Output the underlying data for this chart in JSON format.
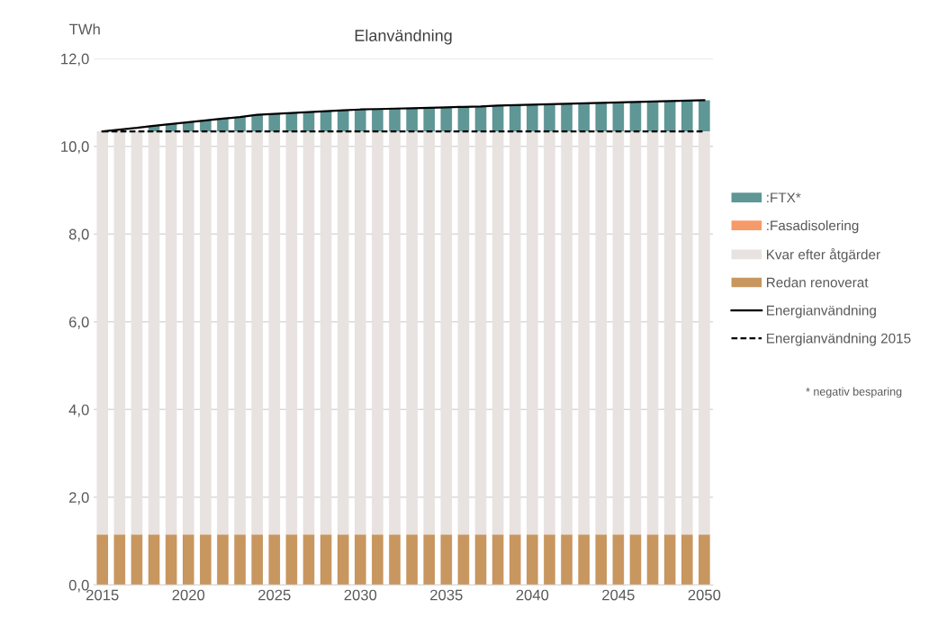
{
  "chart_data": {
    "type": "bar",
    "title": "Elanvändning",
    "ylabel": "TWh",
    "stacked": true,
    "categories": [
      "2015",
      null,
      null,
      null,
      null,
      "2020",
      null,
      null,
      null,
      null,
      "2025",
      null,
      null,
      null,
      null,
      "2030",
      null,
      null,
      null,
      null,
      "2035",
      null,
      null,
      null,
      null,
      "2040",
      null,
      null,
      null,
      null,
      "2045",
      null,
      null,
      null,
      null,
      "2050"
    ],
    "series": [
      {
        "name": "Redan renoverat",
        "color": "#c8965f",
        "values": [
          1.15,
          1.15,
          1.15,
          1.15,
          1.15,
          1.15,
          1.15,
          1.15,
          1.15,
          1.15,
          1.15,
          1.15,
          1.15,
          1.15,
          1.15,
          1.15,
          1.15,
          1.15,
          1.15,
          1.15,
          1.15,
          1.15,
          1.15,
          1.15,
          1.15,
          1.15,
          1.15,
          1.15,
          1.15,
          1.15,
          1.15,
          1.15,
          1.15,
          1.15,
          1.15,
          1.15
        ]
      },
      {
        "name": "Kvar efter åtgärder",
        "color": "#e8e3e0",
        "values": [
          9.19,
          9.19,
          9.19,
          9.19,
          9.19,
          9.19,
          9.19,
          9.19,
          9.19,
          9.19,
          9.19,
          9.19,
          9.19,
          9.19,
          9.19,
          9.19,
          9.19,
          9.19,
          9.19,
          9.19,
          9.19,
          9.19,
          9.19,
          9.19,
          9.19,
          9.19,
          9.19,
          9.19,
          9.19,
          9.19,
          9.19,
          9.19,
          9.19,
          9.19,
          9.19,
          9.19
        ]
      },
      {
        "name": ":Fasadisolering",
        "color": "#f79a6a",
        "values": [
          0,
          0,
          0,
          0,
          0,
          0,
          0,
          0,
          0,
          0,
          0,
          0,
          0,
          0,
          0,
          0,
          0,
          0,
          0,
          0,
          0,
          0,
          0,
          0,
          0,
          0,
          0,
          0,
          0,
          0,
          0,
          0,
          0,
          0,
          0,
          0
        ]
      },
      {
        "name": ":FTX*",
        "color": "#5f9696",
        "values": [
          0,
          null,
          null,
          0.13,
          0.17,
          0.21,
          0.25,
          0.29,
          0.33,
          0.38,
          0.4,
          0.42,
          0.44,
          0.46,
          0.48,
          0.5,
          0.51,
          0.52,
          0.53,
          0.54,
          0.55,
          0.56,
          0.57,
          0.59,
          0.6,
          0.61,
          0.62,
          0.63,
          0.64,
          0.65,
          0.66,
          0.67,
          0.68,
          0.69,
          0.7,
          0.71
        ]
      },
      {
        "name": "Energianvändning",
        "type": "line",
        "color": "#000000",
        "line_style": "solid",
        "values": [
          10.34,
          10.38,
          10.42,
          10.47,
          10.51,
          10.55,
          10.59,
          10.63,
          10.67,
          10.72,
          10.74,
          10.76,
          10.78,
          10.8,
          10.82,
          10.84,
          10.85,
          10.86,
          10.87,
          10.88,
          10.89,
          10.9,
          10.91,
          10.93,
          10.94,
          10.95,
          10.96,
          10.97,
          10.98,
          10.99,
          11.0,
          11.01,
          11.02,
          11.03,
          11.04,
          11.05
        ]
      },
      {
        "name": "Energianvändning 2015",
        "type": "line",
        "color": "#000000",
        "line_style": "dashed",
        "values": [
          10.34,
          10.34,
          10.34,
          10.34,
          10.34,
          10.34,
          10.34,
          10.34,
          10.34,
          10.34,
          10.34,
          10.34,
          10.34,
          10.34,
          10.34,
          10.34,
          10.34,
          10.34,
          10.34,
          10.34,
          10.34,
          10.34,
          10.34,
          10.34,
          10.34,
          10.34,
          10.34,
          10.34,
          10.34,
          10.34,
          10.34,
          10.34,
          10.34,
          10.34,
          10.34,
          10.34
        ]
      }
    ],
    "ylim": [
      0,
      12
    ],
    "yticks": [
      {
        "value": 0,
        "label": "0,0"
      },
      {
        "value": 2,
        "label": "2,0"
      },
      {
        "value": 4,
        "label": "4,0"
      },
      {
        "value": 6,
        "label": "6,0"
      },
      {
        "value": 8,
        "label": "8,0"
      },
      {
        "value": 10,
        "label": "10,0"
      },
      {
        "value": 12,
        "label": "12,0"
      }
    ],
    "grid": "y",
    "legend": "right",
    "marker": "none",
    "annotations": [
      "* negativ besparing"
    ]
  }
}
